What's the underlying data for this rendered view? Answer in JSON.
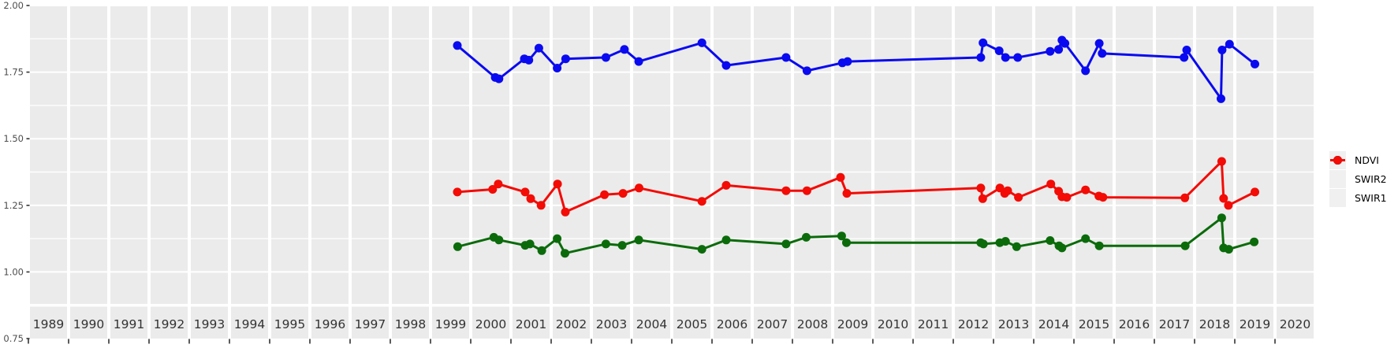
{
  "chart_data": {
    "type": "line",
    "title": "",
    "xlabel": "",
    "ylabel": "",
    "x_axis": {
      "years": [
        1989,
        1990,
        1991,
        1992,
        1993,
        1994,
        1995,
        1996,
        1997,
        1998,
        1999,
        2000,
        2001,
        2002,
        2003,
        2004,
        2005,
        2006,
        2007,
        2008,
        2009,
        2010,
        2011,
        2012,
        2013,
        2014,
        2015,
        2016,
        2017,
        2018,
        2019,
        2020
      ],
      "tick_at_year_start": true
    },
    "y_axis": {
      "range": [
        0.75,
        2.0
      ],
      "major_ticks": [
        "2.00",
        "1.75",
        "1.50",
        "1.25",
        "1.00",
        "0.75"
      ],
      "major_values": [
        2.0,
        1.75,
        1.5,
        1.25,
        1.0,
        0.75
      ],
      "minor_values": [
        1.875,
        1.625,
        1.375,
        1.125,
        0.875
      ]
    },
    "grid": "major-and-minor-white-on-grey",
    "legend": {
      "position": "right",
      "entries": [
        {
          "label": "NDVI",
          "color": "#0a0af0"
        },
        {
          "label": "SWIR2",
          "color": "#0b6b0b"
        },
        {
          "label": "SWIR1",
          "color": "#f30b05"
        }
      ]
    },
    "style": {
      "panel_bg": "#ebebeb",
      "grid_color": "#ffffff",
      "axis_text_color": "#4d4d4d",
      "year_text_color": "#333333",
      "tick_color": "#333333",
      "legend_key_bg": "#f0f0f0"
    },
    "series": [
      {
        "name": "NDVI",
        "color": "#0a0af0",
        "points": [
          [
            1999.68,
            1.85
          ],
          [
            2000.62,
            1.73
          ],
          [
            2000.72,
            1.725
          ],
          [
            2001.32,
            1.8
          ],
          [
            2001.44,
            1.795
          ],
          [
            2001.71,
            1.84
          ],
          [
            2002.12,
            1.765
          ],
          [
            2002.35,
            1.8
          ],
          [
            2003.35,
            1.805
          ],
          [
            2003.85,
            1.835
          ],
          [
            2004.15,
            1.79
          ],
          [
            2005.77,
            1.86
          ],
          [
            2006.34,
            1.775
          ],
          [
            2007.87,
            1.805
          ],
          [
            2008.35,
            1.755
          ],
          [
            2009.22,
            1.785
          ],
          [
            2009.36,
            1.79
          ],
          [
            2012.7,
            1.805
          ],
          [
            2012.76,
            1.86
          ],
          [
            2013.11,
            1.83
          ],
          [
            2013.28,
            1.805
          ],
          [
            2013.61,
            1.805
          ],
          [
            2014.4,
            1.828
          ],
          [
            2014.63,
            1.835
          ],
          [
            2014.72,
            1.87
          ],
          [
            2014.8,
            1.858
          ],
          [
            2015.27,
            1.755
          ],
          [
            2015.64,
            1.858
          ],
          [
            2015.72,
            1.82
          ],
          [
            2017.76,
            1.805
          ],
          [
            2017.83,
            1.833
          ],
          [
            2018.67,
            1.65
          ],
          [
            2018.7,
            1.833
          ],
          [
            2018.9,
            1.855
          ],
          [
            2019.5,
            1.78
          ]
        ]
      },
      {
        "name": "SWIR2",
        "color": "#0b6b0b",
        "points": [
          [
            1999.69,
            1.095
          ],
          [
            2000.58,
            1.13
          ],
          [
            2000.72,
            1.12
          ],
          [
            2001.34,
            1.1
          ],
          [
            2001.47,
            1.105
          ],
          [
            2001.79,
            1.08
          ],
          [
            2002.12,
            1.125
          ],
          [
            2002.33,
            1.07
          ],
          [
            2003.35,
            1.105
          ],
          [
            2003.79,
            1.1
          ],
          [
            2004.15,
            1.12
          ],
          [
            2005.77,
            1.085
          ],
          [
            2006.34,
            1.12
          ],
          [
            2007.87,
            1.105
          ],
          [
            2008.33,
            1.13
          ],
          [
            2009.2,
            1.135
          ],
          [
            2009.33,
            1.11
          ],
          [
            2012.7,
            1.11
          ],
          [
            2012.77,
            1.105
          ],
          [
            2013.13,
            1.11
          ],
          [
            2013.28,
            1.115
          ],
          [
            2013.58,
            1.095
          ],
          [
            2014.4,
            1.118
          ],
          [
            2014.64,
            1.098
          ],
          [
            2014.72,
            1.09
          ],
          [
            2015.27,
            1.125
          ],
          [
            2015.64,
            1.098
          ],
          [
            2017.79,
            1.098
          ],
          [
            2018.69,
            1.203
          ],
          [
            2018.74,
            1.09
          ],
          [
            2018.88,
            1.085
          ],
          [
            2019.48,
            1.113
          ]
        ]
      },
      {
        "name": "SWIR1",
        "color": "#f30b05",
        "points": [
          [
            1999.68,
            1.3
          ],
          [
            2000.55,
            1.31
          ],
          [
            2000.7,
            1.33
          ],
          [
            2001.34,
            1.3
          ],
          [
            2001.49,
            1.275
          ],
          [
            2001.77,
            1.25
          ],
          [
            2002.13,
            1.33
          ],
          [
            2002.34,
            1.225
          ],
          [
            2003.31,
            1.29
          ],
          [
            2003.81,
            1.295
          ],
          [
            2004.16,
            1.315
          ],
          [
            2005.77,
            1.265
          ],
          [
            2006.34,
            1.325
          ],
          [
            2007.87,
            1.305
          ],
          [
            2008.35,
            1.305
          ],
          [
            2009.17,
            1.355
          ],
          [
            2009.34,
            1.295
          ],
          [
            2012.7,
            1.315
          ],
          [
            2012.75,
            1.275
          ],
          [
            2013.13,
            1.315
          ],
          [
            2013.26,
            1.295
          ],
          [
            2013.34,
            1.305
          ],
          [
            2013.63,
            1.28
          ],
          [
            2014.42,
            1.33
          ],
          [
            2014.63,
            1.303
          ],
          [
            2014.72,
            1.282
          ],
          [
            2014.85,
            1.28
          ],
          [
            2015.27,
            1.308
          ],
          [
            2015.63,
            1.285
          ],
          [
            2015.74,
            1.28
          ],
          [
            2017.78,
            1.278
          ],
          [
            2018.69,
            1.415
          ],
          [
            2018.74,
            1.276
          ],
          [
            2018.87,
            1.25
          ],
          [
            2019.5,
            1.3
          ]
        ]
      }
    ]
  }
}
